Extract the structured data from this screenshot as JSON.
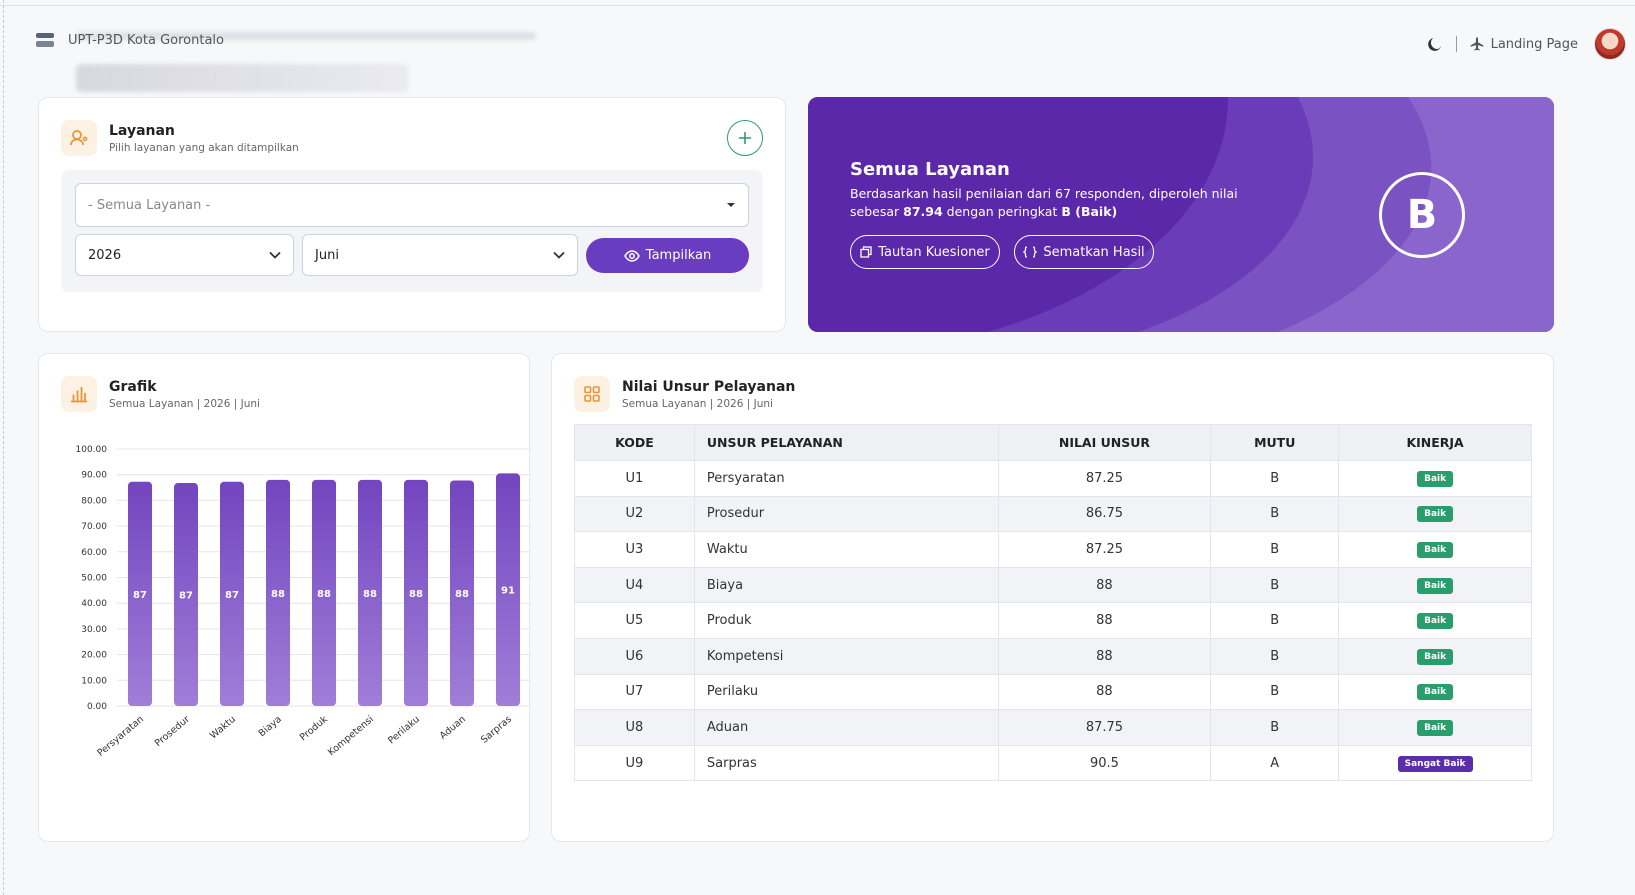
{
  "header": {
    "brand": "UPT-P3D Kota Gorontalo",
    "landing_label": "Landing Page"
  },
  "layanan": {
    "title": "Layanan",
    "subtitle": "Pilih layanan yang akan ditampilkan",
    "service_select": "- Semua Layanan -",
    "year_select": "2026",
    "month_select": "Juni",
    "show_button": "Tampilkan"
  },
  "banner": {
    "title": "Semua Layanan",
    "desc_prefix": "Berdasarkan hasil penilaian dari 67 responden, diperoleh nilai sebesar",
    "score": "87.94",
    "desc_mid": "dengan peringkat",
    "rating": "B (Baik)",
    "grade": "B",
    "btn_kuesioner": "Tautan Kuesioner",
    "btn_sematkan": "Sematkan Hasil"
  },
  "grafik": {
    "title": "Grafik",
    "subtitle": "Semua Layanan | 2026 | Juni"
  },
  "chart_data": {
    "type": "bar",
    "categories": [
      "Persyaratan",
      "Prosedur",
      "Waktu",
      "Biaya",
      "Produk",
      "Kompetensi",
      "Perilaku",
      "Aduan",
      "Sarpras"
    ],
    "values": [
      87.25,
      86.75,
      87.25,
      88,
      88,
      88,
      88,
      87.75,
      90.5
    ],
    "data_labels": [
      "87",
      "87",
      "87",
      "88",
      "88",
      "88",
      "88",
      "88",
      "91"
    ],
    "yticks": [
      "100.00",
      "90.00",
      "80.00",
      "70.00",
      "60.00",
      "50.00",
      "40.00",
      "30.00",
      "20.00",
      "10.00",
      "0.00"
    ],
    "ylim": [
      0,
      100
    ],
    "grid": true,
    "color": "#7c54c4"
  },
  "nilai": {
    "title": "Nilai Unsur Pelayanan",
    "subtitle": "Semua Layanan | 2026 | Juni",
    "columns": [
      "KODE",
      "UNSUR PELAYANAN",
      "NILAI UNSUR",
      "MUTU",
      "KINERJA"
    ],
    "rows": [
      {
        "kode": "U1",
        "unsur": "Persyaratan",
        "nilai": "87.25",
        "mutu": "B",
        "kinerja": "Baik"
      },
      {
        "kode": "U2",
        "unsur": "Prosedur",
        "nilai": "86.75",
        "mutu": "B",
        "kinerja": "Baik"
      },
      {
        "kode": "U3",
        "unsur": "Waktu",
        "nilai": "87.25",
        "mutu": "B",
        "kinerja": "Baik"
      },
      {
        "kode": "U4",
        "unsur": "Biaya",
        "nilai": "88",
        "mutu": "B",
        "kinerja": "Baik"
      },
      {
        "kode": "U5",
        "unsur": "Produk",
        "nilai": "88",
        "mutu": "B",
        "kinerja": "Baik"
      },
      {
        "kode": "U6",
        "unsur": "Kompetensi",
        "nilai": "88",
        "mutu": "B",
        "kinerja": "Baik"
      },
      {
        "kode": "U7",
        "unsur": "Perilaku",
        "nilai": "88",
        "mutu": "B",
        "kinerja": "Baik"
      },
      {
        "kode": "U8",
        "unsur": "Aduan",
        "nilai": "87.75",
        "mutu": "B",
        "kinerja": "Baik"
      },
      {
        "kode": "U9",
        "unsur": "Sarpras",
        "nilai": "90.5",
        "mutu": "A",
        "kinerja": "Sangat Baik"
      }
    ]
  },
  "colors": {
    "primary": "#6a3cc0",
    "banner": "#5b2da8",
    "success": "#2a9d6c",
    "accent_icon": "#e8963a"
  },
  "icons": [
    "menu-icon",
    "moon-icon",
    "plane-icon",
    "user-icon",
    "plus-icon",
    "chevron-down-icon",
    "eye-icon",
    "copy-icon",
    "code-icon",
    "bar-chart-icon",
    "grid-icon"
  ]
}
